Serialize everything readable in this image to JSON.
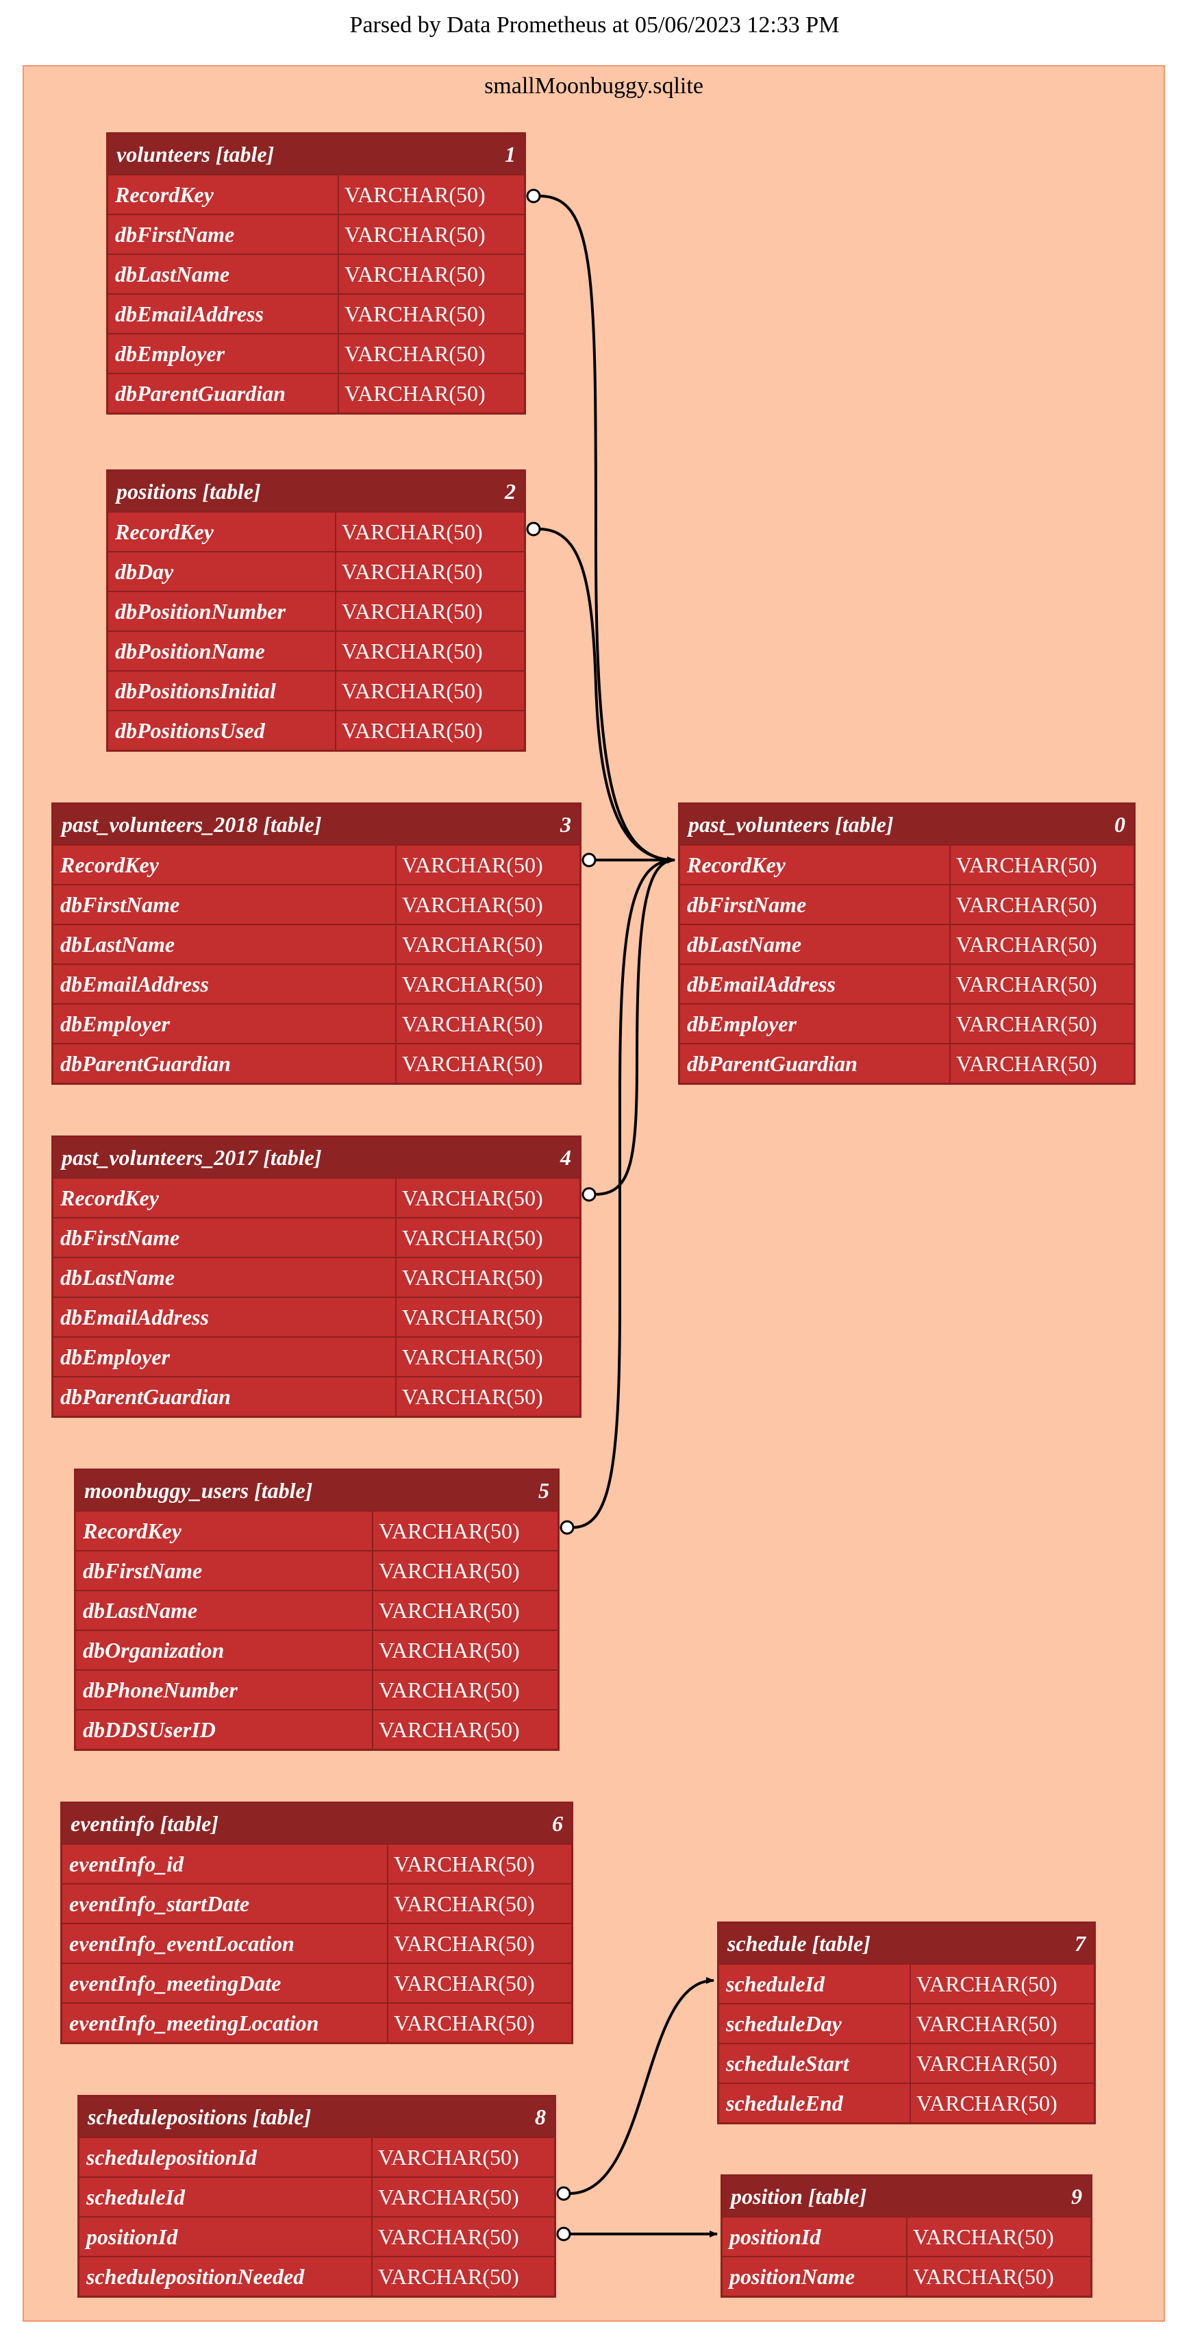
{
  "title": "Parsed by Data Prometheus at 05/06/2023 12:33 PM",
  "cluster": {
    "label": "smallMoonbuggy.sqlite"
  },
  "colors": {
    "cluster_bg": "#fdc6a6",
    "cluster_border": "#f4946c",
    "header": "#8e2323",
    "row": "#c32e2e",
    "border": "#8c2020"
  },
  "tables": [
    {
      "name": "volunteers [table]",
      "index": "1",
      "fields": [
        {
          "name": "RecordKey",
          "type": "VARCHAR(50)"
        },
        {
          "name": "dbFirstName",
          "type": "VARCHAR(50)"
        },
        {
          "name": "dbLastName",
          "type": "VARCHAR(50)"
        },
        {
          "name": "dbEmailAddress",
          "type": "VARCHAR(50)"
        },
        {
          "name": "dbEmployer",
          "type": "VARCHAR(50)"
        },
        {
          "name": "dbParentGuardian",
          "type": "VARCHAR(50)"
        }
      ]
    },
    {
      "name": "positions [table]",
      "index": "2",
      "fields": [
        {
          "name": "RecordKey",
          "type": "VARCHAR(50)"
        },
        {
          "name": "dbDay",
          "type": "VARCHAR(50)"
        },
        {
          "name": "dbPositionNumber",
          "type": "VARCHAR(50)"
        },
        {
          "name": "dbPositionName",
          "type": "VARCHAR(50)"
        },
        {
          "name": "dbPositionsInitial",
          "type": "VARCHAR(50)"
        },
        {
          "name": "dbPositionsUsed",
          "type": "VARCHAR(50)"
        }
      ]
    },
    {
      "name": "past_volunteers_2018 [table]",
      "index": "3",
      "fields": [
        {
          "name": "RecordKey",
          "type": "VARCHAR(50)"
        },
        {
          "name": "dbFirstName",
          "type": "VARCHAR(50)"
        },
        {
          "name": "dbLastName",
          "type": "VARCHAR(50)"
        },
        {
          "name": "dbEmailAddress",
          "type": "VARCHAR(50)"
        },
        {
          "name": "dbEmployer",
          "type": "VARCHAR(50)"
        },
        {
          "name": "dbParentGuardian",
          "type": "VARCHAR(50)"
        }
      ]
    },
    {
      "name": "past_volunteers_2017 [table]",
      "index": "4",
      "fields": [
        {
          "name": "RecordKey",
          "type": "VARCHAR(50)"
        },
        {
          "name": "dbFirstName",
          "type": "VARCHAR(50)"
        },
        {
          "name": "dbLastName",
          "type": "VARCHAR(50)"
        },
        {
          "name": "dbEmailAddress",
          "type": "VARCHAR(50)"
        },
        {
          "name": "dbEmployer",
          "type": "VARCHAR(50)"
        },
        {
          "name": "dbParentGuardian",
          "type": "VARCHAR(50)"
        }
      ]
    },
    {
      "name": "moonbuggy_users [table]",
      "index": "5",
      "fields": [
        {
          "name": "RecordKey",
          "type": "VARCHAR(50)"
        },
        {
          "name": "dbFirstName",
          "type": "VARCHAR(50)"
        },
        {
          "name": "dbLastName",
          "type": "VARCHAR(50)"
        },
        {
          "name": "dbOrganization",
          "type": "VARCHAR(50)"
        },
        {
          "name": "dbPhoneNumber",
          "type": "VARCHAR(50)"
        },
        {
          "name": "dbDDSUserID",
          "type": "VARCHAR(50)"
        }
      ]
    },
    {
      "name": "eventinfo [table]",
      "index": "6",
      "fields": [
        {
          "name": "eventInfo_id",
          "type": "VARCHAR(50)"
        },
        {
          "name": "eventInfo_startDate",
          "type": "VARCHAR(50)"
        },
        {
          "name": "eventInfo_eventLocation",
          "type": "VARCHAR(50)"
        },
        {
          "name": "eventInfo_meetingDate",
          "type": "VARCHAR(50)"
        },
        {
          "name": "eventInfo_meetingLocation",
          "type": "VARCHAR(50)"
        }
      ]
    },
    {
      "name": "schedulepositions [table]",
      "index": "8",
      "fields": [
        {
          "name": "schedulepositionId",
          "type": "VARCHAR(50)"
        },
        {
          "name": "scheduleId",
          "type": "VARCHAR(50)"
        },
        {
          "name": "positionId",
          "type": "VARCHAR(50)"
        },
        {
          "name": "schedulepositionNeeded",
          "type": "VARCHAR(50)"
        }
      ]
    },
    {
      "name": "past_volunteers [table]",
      "index": "0",
      "fields": [
        {
          "name": "RecordKey",
          "type": "VARCHAR(50)"
        },
        {
          "name": "dbFirstName",
          "type": "VARCHAR(50)"
        },
        {
          "name": "dbLastName",
          "type": "VARCHAR(50)"
        },
        {
          "name": "dbEmailAddress",
          "type": "VARCHAR(50)"
        },
        {
          "name": "dbEmployer",
          "type": "VARCHAR(50)"
        },
        {
          "name": "dbParentGuardian",
          "type": "VARCHAR(50)"
        }
      ]
    },
    {
      "name": "schedule [table]",
      "index": "7",
      "fields": [
        {
          "name": "scheduleId",
          "type": "VARCHAR(50)"
        },
        {
          "name": "scheduleDay",
          "type": "VARCHAR(50)"
        },
        {
          "name": "scheduleStart",
          "type": "VARCHAR(50)"
        },
        {
          "name": "scheduleEnd",
          "type": "VARCHAR(50)"
        }
      ]
    },
    {
      "name": "position [table]",
      "index": "9",
      "fields": [
        {
          "name": "positionId",
          "type": "VARCHAR(50)"
        },
        {
          "name": "positionName",
          "type": "VARCHAR(50)"
        }
      ]
    }
  ],
  "relations": [
    {
      "from": "volunteers.RecordKey",
      "to": "past_volunteers.RecordKey"
    },
    {
      "from": "positions.RecordKey",
      "to": "past_volunteers.RecordKey"
    },
    {
      "from": "past_volunteers_2018.RecordKey",
      "to": "past_volunteers.RecordKey"
    },
    {
      "from": "past_volunteers_2017.RecordKey",
      "to": "past_volunteers.RecordKey"
    },
    {
      "from": "moonbuggy_users.RecordKey",
      "to": "past_volunteers.RecordKey"
    },
    {
      "from": "schedulepositions.scheduleId",
      "to": "schedule.scheduleId"
    },
    {
      "from": "schedulepositions.positionId",
      "to": "position.positionId"
    }
  ]
}
